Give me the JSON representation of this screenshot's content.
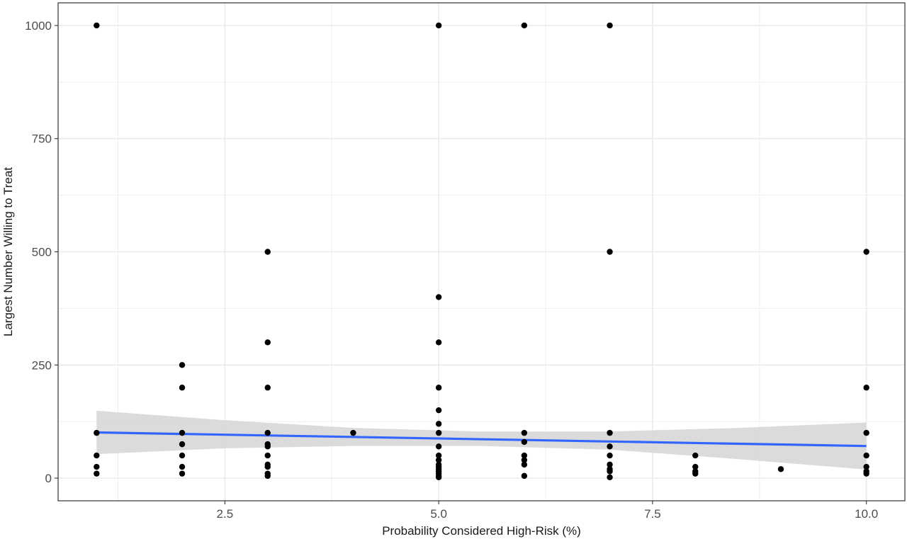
{
  "chart_data": {
    "type": "scatter",
    "title": "",
    "xlabel": "Probability Considered High-Risk (%)",
    "ylabel": "Largest Number Willing to Treat",
    "xlim": [
      0.55,
      10.45
    ],
    "ylim": [
      -50,
      1050
    ],
    "x_ticks": [
      {
        "value": 2.5,
        "label": "2.5"
      },
      {
        "value": 5.0,
        "label": "5.0"
      },
      {
        "value": 7.5,
        "label": "7.5"
      },
      {
        "value": 10.0,
        "label": "10.0"
      }
    ],
    "y_ticks": [
      {
        "value": 0,
        "label": "0"
      },
      {
        "value": 250,
        "label": "250"
      },
      {
        "value": 500,
        "label": "500"
      },
      {
        "value": 750,
        "label": "750"
      },
      {
        "value": 1000,
        "label": "1000"
      }
    ],
    "x_minor": [
      1.25,
      3.75,
      6.25,
      8.75
    ],
    "y_minor": [
      125,
      375,
      625,
      875
    ],
    "grid": true,
    "colors": {
      "points": "#000000",
      "fit_line": "#3366ff",
      "ribbon": "#d9d9d9",
      "grid": "#ebebeb",
      "panel_border": "#333333"
    },
    "points": [
      {
        "x": 1,
        "y": 1000
      },
      {
        "x": 1,
        "y": 100
      },
      {
        "x": 1,
        "y": 50
      },
      {
        "x": 1,
        "y": 25
      },
      {
        "x": 1,
        "y": 10
      },
      {
        "x": 2,
        "y": 250
      },
      {
        "x": 2,
        "y": 200
      },
      {
        "x": 2,
        "y": 100
      },
      {
        "x": 2,
        "y": 75
      },
      {
        "x": 2,
        "y": 50
      },
      {
        "x": 2,
        "y": 25
      },
      {
        "x": 2,
        "y": 10
      },
      {
        "x": 3,
        "y": 500
      },
      {
        "x": 3,
        "y": 300
      },
      {
        "x": 3,
        "y": 200
      },
      {
        "x": 3,
        "y": 100
      },
      {
        "x": 3,
        "y": 75
      },
      {
        "x": 3,
        "y": 70
      },
      {
        "x": 3,
        "y": 50
      },
      {
        "x": 3,
        "y": 30
      },
      {
        "x": 3,
        "y": 25
      },
      {
        "x": 3,
        "y": 10
      },
      {
        "x": 3,
        "y": 5
      },
      {
        "x": 4,
        "y": 100
      },
      {
        "x": 5,
        "y": 1000
      },
      {
        "x": 5,
        "y": 400
      },
      {
        "x": 5,
        "y": 300
      },
      {
        "x": 5,
        "y": 200
      },
      {
        "x": 5,
        "y": 150
      },
      {
        "x": 5,
        "y": 120
      },
      {
        "x": 5,
        "y": 100
      },
      {
        "x": 5,
        "y": 70
      },
      {
        "x": 5,
        "y": 50
      },
      {
        "x": 5,
        "y": 40
      },
      {
        "x": 5,
        "y": 30
      },
      {
        "x": 5,
        "y": 25
      },
      {
        "x": 5,
        "y": 20
      },
      {
        "x": 5,
        "y": 15
      },
      {
        "x": 5,
        "y": 10
      },
      {
        "x": 5,
        "y": 5
      },
      {
        "x": 5,
        "y": 2
      },
      {
        "x": 6,
        "y": 1000
      },
      {
        "x": 6,
        "y": 100
      },
      {
        "x": 6,
        "y": 80
      },
      {
        "x": 6,
        "y": 50
      },
      {
        "x": 6,
        "y": 40
      },
      {
        "x": 6,
        "y": 30
      },
      {
        "x": 6,
        "y": 5
      },
      {
        "x": 7,
        "y": 1000
      },
      {
        "x": 7,
        "y": 500
      },
      {
        "x": 7,
        "y": 100
      },
      {
        "x": 7,
        "y": 70
      },
      {
        "x": 7,
        "y": 50
      },
      {
        "x": 7,
        "y": 30
      },
      {
        "x": 7,
        "y": 20
      },
      {
        "x": 7,
        "y": 15
      },
      {
        "x": 7,
        "y": 2
      },
      {
        "x": 8,
        "y": 50
      },
      {
        "x": 8,
        "y": 25
      },
      {
        "x": 8,
        "y": 15
      },
      {
        "x": 8,
        "y": 10
      },
      {
        "x": 9,
        "y": 20
      },
      {
        "x": 10,
        "y": 500
      },
      {
        "x": 10,
        "y": 200
      },
      {
        "x": 10,
        "y": 100
      },
      {
        "x": 10,
        "y": 50
      },
      {
        "x": 10,
        "y": 25
      },
      {
        "x": 10,
        "y": 15
      },
      {
        "x": 10,
        "y": 10
      }
    ],
    "fit_line": {
      "method": "linear",
      "points": [
        {
          "x": 1,
          "y": 101
        },
        {
          "x": 10,
          "y": 71
        }
      ]
    },
    "confidence_band": {
      "x": [
        1,
        2.5,
        4,
        5.5,
        7,
        8.5,
        10
      ],
      "upper": [
        149,
        128,
        111,
        103,
        103,
        111,
        123
      ],
      "lower": [
        53,
        66,
        71,
        71,
        63,
        42,
        19
      ]
    }
  }
}
